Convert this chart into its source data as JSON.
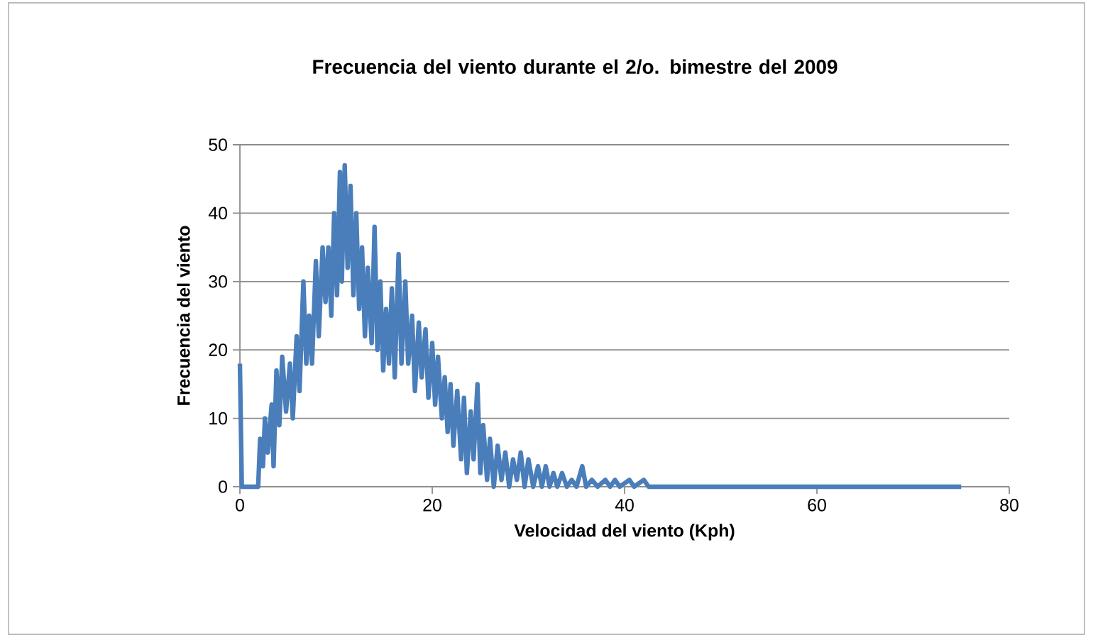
{
  "chart_data": {
    "type": "line",
    "title": "Frecuencia del viento durante el 2/o. bimestre del 2009",
    "xlabel": "Velocidad del viento (Kph)",
    "ylabel": "Frecuencia del viento",
    "xlim": [
      0,
      80
    ],
    "xticks": [
      0,
      20,
      40,
      60,
      80
    ],
    "ylim": [
      0,
      50
    ],
    "yticks": [
      0,
      10,
      20,
      30,
      40,
      50
    ],
    "grid": "y",
    "marker": "none",
    "line_style": "solid",
    "series": [
      {
        "color": "#4a7ebb",
        "x": [
          0,
          0.2,
          1.9,
          2.1,
          2.4,
          2.6,
          2.9,
          3.3,
          3.5,
          3.8,
          4.1,
          4.4,
          4.8,
          5.2,
          5.5,
          5.9,
          6.2,
          6.6,
          6.9,
          7.2,
          7.5,
          7.9,
          8.2,
          8.6,
          8.9,
          9.2,
          9.5,
          9.8,
          10.1,
          10.4,
          10.6,
          10.9,
          11.2,
          11.5,
          11.8,
          12.1,
          12.4,
          12.7,
          13.0,
          13.3,
          13.7,
          14.0,
          14.3,
          14.6,
          14.9,
          15.2,
          15.5,
          15.8,
          16.1,
          16.5,
          16.8,
          17.2,
          17.5,
          17.9,
          18.2,
          18.6,
          18.9,
          19.3,
          19.6,
          20.0,
          20.3,
          20.6,
          21.0,
          21.3,
          21.6,
          21.9,
          22.2,
          22.6,
          23.0,
          23.3,
          23.6,
          24.0,
          24.3,
          24.7,
          25.0,
          25.3,
          25.7,
          26.0,
          26.4,
          26.8,
          27.2,
          27.6,
          28.0,
          28.4,
          28.8,
          29.2,
          29.6,
          30.0,
          30.5,
          31.0,
          31.4,
          31.8,
          32.2,
          32.6,
          33.0,
          33.5,
          34.0,
          34.5,
          35.0,
          35.6,
          36.0,
          36.6,
          37.2,
          38,
          38.5,
          39,
          39.5,
          40.5,
          41,
          42,
          42.5,
          75
        ],
        "values": [
          18,
          0,
          0,
          7,
          3,
          10,
          5,
          12,
          3,
          17,
          9,
          19,
          11,
          18,
          10,
          22,
          14,
          30,
          18,
          25,
          18,
          33,
          22,
          35,
          27,
          35,
          25,
          40,
          28,
          46,
          30,
          47,
          32,
          44,
          28,
          40,
          26,
          35,
          22,
          32,
          21,
          38,
          20,
          30,
          17,
          26,
          18,
          29,
          16,
          34,
          18,
          30,
          18,
          25,
          14,
          24,
          16,
          23,
          13,
          21,
          12,
          19,
          10,
          16,
          8,
          15,
          6,
          14,
          4,
          13,
          2,
          11,
          4,
          15,
          2,
          9,
          1,
          7,
          0,
          6,
          1,
          5,
          0,
          4,
          1,
          5,
          0,
          4,
          0,
          3,
          0,
          3,
          0,
          2,
          0,
          2,
          0,
          1,
          0,
          3,
          0,
          1,
          0,
          1,
          0,
          1,
          0,
          1,
          0,
          1,
          0,
          0
        ]
      }
    ]
  }
}
